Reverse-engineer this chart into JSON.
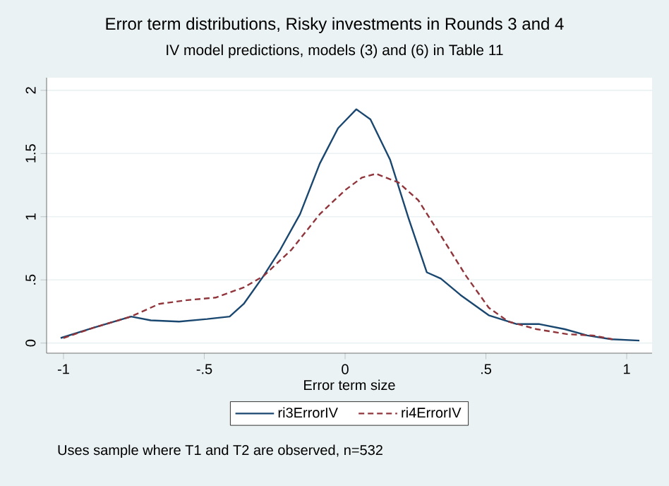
{
  "chart_data": {
    "type": "line",
    "title": "Error term distributions, Risky investments in Rounds 3 and 4",
    "subtitle": "IV model predictions, models (3) and (6) in Table 11",
    "xlabel": "Error term size",
    "annotations": [
      "Uses sample where T1 and T2 are observed, n=532"
    ],
    "xlim": [
      -1.06,
      1.09
    ],
    "ylim": [
      -0.08,
      2.1
    ],
    "xticks": [
      -1,
      {
        "value": -0.5,
        "label": "-.5"
      },
      0,
      {
        "value": 0.5,
        "label": ".5"
      },
      1
    ],
    "yticks": [
      0,
      {
        "value": 0.5,
        "label": ".5"
      },
      1,
      1.5,
      2
    ],
    "grid": "y",
    "legend": "bottom",
    "marker": "none",
    "series": [
      {
        "name": "ri3ErrorIV",
        "color": "#1a476f",
        "line_style": "solid",
        "x": [
          -1.01,
          -0.895,
          -0.76,
          -0.69,
          -0.59,
          -0.49,
          -0.41,
          -0.36,
          -0.29,
          -0.23,
          -0.16,
          -0.09,
          -0.025,
          0.04,
          0.09,
          0.16,
          0.225,
          0.29,
          0.34,
          0.41,
          0.51,
          0.61,
          0.69,
          0.78,
          0.86,
          0.945,
          1.045
        ],
        "values": [
          0.04,
          0.12,
          0.21,
          0.18,
          0.17,
          0.19,
          0.21,
          0.31,
          0.53,
          0.74,
          1.02,
          1.42,
          1.7,
          1.85,
          1.77,
          1.45,
          0.99,
          0.56,
          0.51,
          0.38,
          0.22,
          0.15,
          0.15,
          0.11,
          0.06,
          0.03,
          0.02
        ]
      },
      {
        "name": "ri4ErrorIV",
        "color": "#90353b",
        "line_style": "dashed",
        "x": [
          -1.0,
          -0.895,
          -0.76,
          -0.66,
          -0.56,
          -0.46,
          -0.36,
          -0.29,
          -0.19,
          -0.09,
          0.0,
          0.06,
          0.11,
          0.19,
          0.26,
          0.34,
          0.43,
          0.51,
          0.58,
          0.68,
          0.79,
          0.88,
          0.95
        ],
        "values": [
          0.04,
          0.12,
          0.21,
          0.31,
          0.34,
          0.36,
          0.44,
          0.53,
          0.74,
          1.02,
          1.21,
          1.31,
          1.34,
          1.27,
          1.13,
          0.85,
          0.53,
          0.28,
          0.17,
          0.11,
          0.07,
          0.06,
          0.03
        ]
      }
    ]
  }
}
